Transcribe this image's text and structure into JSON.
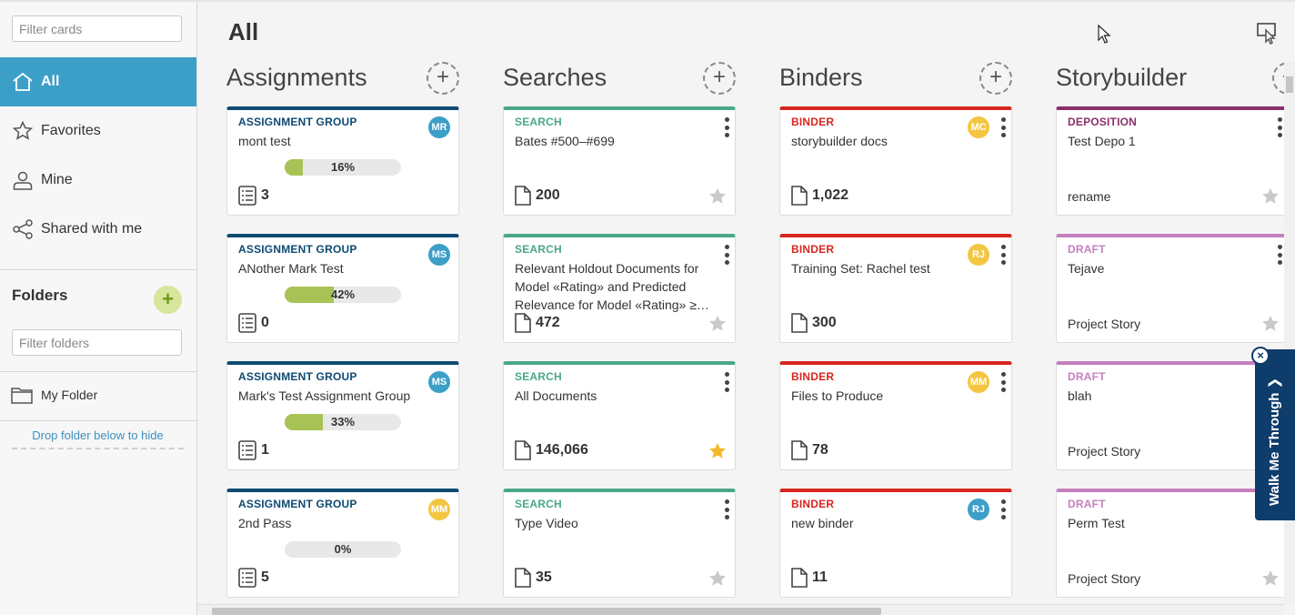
{
  "sidebar": {
    "filter_placeholder": "Filter cards",
    "nav": [
      {
        "label": "All",
        "icon": "home-icon",
        "active": true
      },
      {
        "label": "Favorites",
        "icon": "star-outline-icon"
      },
      {
        "label": "Mine",
        "icon": "person-icon"
      },
      {
        "label": "Shared with me",
        "icon": "share-icon"
      }
    ],
    "folders_title": "Folders",
    "add_folder_label": "+",
    "filter_folders_placeholder": "Filter folders",
    "my_folder": "My Folder",
    "drop_hint": "Drop folder below to hide"
  },
  "main": {
    "title": "All",
    "add_label": "+",
    "columns": [
      {
        "title": "Assignments",
        "cards": [
          {
            "type": "ASSIGNMENT GROUP",
            "name": "mont test",
            "avatar": "MR",
            "progress_label": "16%",
            "progress": 0.16,
            "count": "3"
          },
          {
            "type": "ASSIGNMENT GROUP",
            "name": "ANother Mark Test",
            "avatar": "MS",
            "progress_label": "42%",
            "progress": 0.42,
            "count": "0"
          },
          {
            "type": "ASSIGNMENT GROUP",
            "name": "Mark's Test Assignment Group",
            "avatar": "MS",
            "progress_label": "33%",
            "progress": 0.33,
            "count": "1"
          },
          {
            "type": "ASSIGNMENT GROUP",
            "name": "2nd Pass",
            "avatar": "MM",
            "progress_label": "0%",
            "progress": 0,
            "count": "5"
          }
        ]
      },
      {
        "title": "Searches",
        "cards": [
          {
            "type": "SEARCH",
            "name": "Bates #500–#699",
            "count": "200",
            "favorite": false
          },
          {
            "type": "SEARCH",
            "name": "Relevant Holdout Documents for Model «Rating» and Predicted Relevance for Model «Rating» ≥…",
            "count": "472",
            "favorite": false
          },
          {
            "type": "SEARCH",
            "name": "All Documents",
            "count": "146,066",
            "favorite": true
          },
          {
            "type": "SEARCH",
            "name": "Type Video",
            "count": "35",
            "favorite": false
          }
        ]
      },
      {
        "title": "Binders",
        "cards": [
          {
            "type": "BINDER",
            "name": "storybuilder docs",
            "avatar": "MC",
            "count": "1,022"
          },
          {
            "type": "BINDER",
            "name": "Training Set: Rachel test",
            "avatar": "RJ",
            "count": "300"
          },
          {
            "type": "BINDER",
            "name": "Files to Produce",
            "avatar": "MM",
            "count": "78"
          },
          {
            "type": "BINDER",
            "name": "new binder",
            "avatar": "RJ",
            "count": "11"
          }
        ]
      },
      {
        "title": "Storybuilder",
        "cards": [
          {
            "type": "DEPOSITION",
            "name": "Test Depo 1",
            "sub": "rename"
          },
          {
            "type": "DRAFT",
            "name": "Tejave",
            "sub": "Project Story"
          },
          {
            "type": "DRAFT",
            "name": "blah",
            "sub": "Project Story"
          },
          {
            "type": "DRAFT",
            "name": "Perm Test",
            "sub": "Project Story"
          }
        ]
      }
    ]
  },
  "walkme": {
    "label": "Walk Me Through ❯",
    "close": "×"
  },
  "colors": {
    "accent": "#3c9fc7",
    "assignment": "#0e4a72",
    "search": "#4aa889",
    "binder": "#d7261e",
    "deposition": "#8a2f6a",
    "draft": "#c67fbf",
    "avatar_blue": "#3c9fc7",
    "avatar_yellow": "#f3c641",
    "progress_fill": "#a8c256",
    "favorite_star": "#f3b92b"
  }
}
